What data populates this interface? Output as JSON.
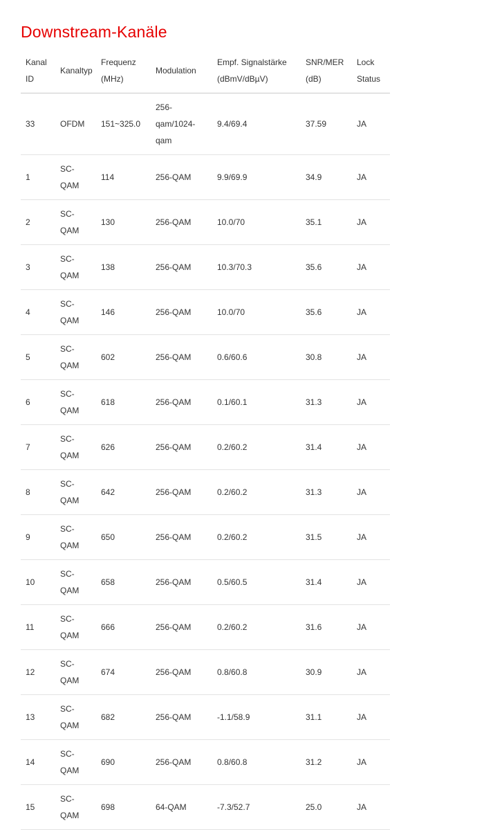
{
  "page": {
    "title": "Downstream-Kanäle",
    "title_color": "#e60000",
    "background_color": "#ffffff",
    "text_color": "#333333"
  },
  "table": {
    "columns": [
      {
        "name": "kanal-id",
        "label": [
          "Kanal",
          "ID"
        ]
      },
      {
        "name": "kanaltyp",
        "label": "Kanaltyp"
      },
      {
        "name": "frequenz",
        "label": [
          "Frequenz",
          "(MHz)"
        ]
      },
      {
        "name": "modulation",
        "label": "Modulation"
      },
      {
        "name": "signalstaerke",
        "label": [
          "Empf. Signalstärke",
          "(dBmV/dBµV)"
        ]
      },
      {
        "name": "snr-mer",
        "label": [
          "SNR/MER",
          "(dB)"
        ]
      },
      {
        "name": "lock-status",
        "label": [
          "Lock",
          "Status"
        ]
      }
    ],
    "rows": [
      [
        "33",
        "OFDM",
        "151~325.0",
        [
          "256-qam/1024-",
          "qam"
        ],
        "9.4/69.4",
        "37.59",
        "JA"
      ],
      [
        "1",
        "SC-QAM",
        "114",
        "256-QAM",
        "9.9/69.9",
        "34.9",
        "JA"
      ],
      [
        "2",
        "SC-QAM",
        "130",
        "256-QAM",
        "10.0/70",
        "35.1",
        "JA"
      ],
      [
        "3",
        "SC-QAM",
        "138",
        "256-QAM",
        "10.3/70.3",
        "35.6",
        "JA"
      ],
      [
        "4",
        "SC-QAM",
        "146",
        "256-QAM",
        "10.0/70",
        "35.6",
        "JA"
      ],
      [
        "5",
        "SC-QAM",
        "602",
        "256-QAM",
        "0.6/60.6",
        "30.8",
        "JA"
      ],
      [
        "6",
        "SC-QAM",
        "618",
        "256-QAM",
        "0.1/60.1",
        "31.3",
        "JA"
      ],
      [
        "7",
        "SC-QAM",
        "626",
        "256-QAM",
        "0.2/60.2",
        "31.4",
        "JA"
      ],
      [
        "8",
        "SC-QAM",
        "642",
        "256-QAM",
        "0.2/60.2",
        "31.3",
        "JA"
      ],
      [
        "9",
        "SC-QAM",
        "650",
        "256-QAM",
        "0.2/60.2",
        "31.5",
        "JA"
      ],
      [
        "10",
        "SC-QAM",
        "658",
        "256-QAM",
        "0.5/60.5",
        "31.4",
        "JA"
      ],
      [
        "11",
        "SC-QAM",
        "666",
        "256-QAM",
        "0.2/60.2",
        "31.6",
        "JA"
      ],
      [
        "12",
        "SC-QAM",
        "674",
        "256-QAM",
        "0.8/60.8",
        "30.9",
        "JA"
      ],
      [
        "13",
        "SC-QAM",
        "682",
        "256-QAM",
        "-1.1/58.9",
        "31.1",
        "JA"
      ],
      [
        "14",
        "SC-QAM",
        "690",
        "256-QAM",
        "0.8/60.8",
        "31.2",
        "JA"
      ],
      [
        "15",
        "SC-QAM",
        "698",
        "64-QAM",
        "-7.3/52.7",
        "25.0",
        "JA"
      ]
    ]
  }
}
